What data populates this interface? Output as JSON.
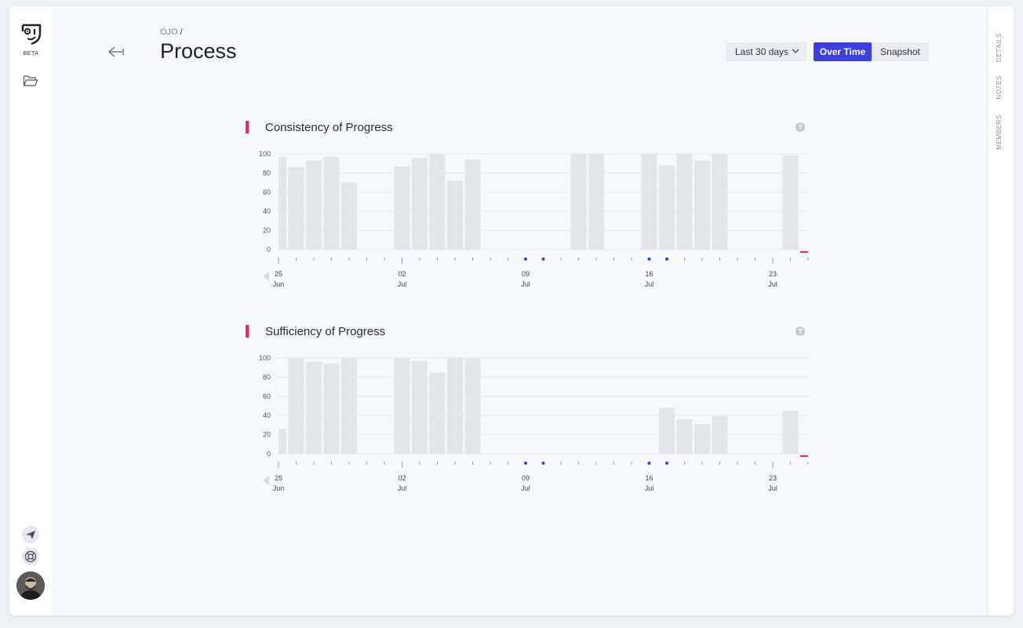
{
  "app": {
    "beta_label": "BETA"
  },
  "icons": {
    "logo": "ojo-logo-icon",
    "folder": "folder-icon",
    "send": "send-icon",
    "help": "lifebuoy-icon",
    "back": "back-arrow-icon",
    "dropdown": "chevron-down-icon",
    "question": "question-icon"
  },
  "header": {
    "breadcrumb": "OJO",
    "breadcrumb_sep": "/",
    "title": "Process",
    "range_label": "Last 30 days",
    "view_over_time": "Over Time",
    "view_snapshot": "Snapshot"
  },
  "right_tabs": [
    "DETAILS",
    "NOTES",
    "MEMBERS"
  ],
  "colors": {
    "accent": "#3a3fde",
    "marker": "#e8275c",
    "bar": "#e4e5e9",
    "dot": "#3a3fde"
  },
  "sections": [
    {
      "title": "Consistency of Progress",
      "help": "?"
    },
    {
      "title": "Sufficiency of Progress",
      "help": "?"
    }
  ],
  "chart_data": [
    {
      "type": "bar",
      "title": "Consistency of Progress",
      "ylim": [
        0,
        100
      ],
      "yticks": [
        0,
        20,
        40,
        60,
        80,
        100
      ],
      "x_labels": [
        {
          "day": "25",
          "month": "Jun",
          "index": 0
        },
        {
          "day": "02",
          "month": "Jul",
          "index": 7
        },
        {
          "day": "09",
          "month": "Jul",
          "index": 14
        },
        {
          "day": "16",
          "month": "Jul",
          "index": 21
        },
        {
          "day": "23",
          "month": "Jul",
          "index": 28
        }
      ],
      "values": [
        97,
        86,
        93,
        97,
        70,
        null,
        null,
        87,
        96,
        100,
        72,
        94,
        null,
        null,
        null,
        null,
        null,
        100,
        100,
        null,
        null,
        100,
        88,
        100,
        93,
        100,
        null,
        null,
        null,
        98,
        null
      ],
      "dots": [
        14,
        15,
        21,
        22
      ],
      "current_marker": 30,
      "grid": true
    },
    {
      "type": "bar",
      "title": "Sufficiency of Progress",
      "ylim": [
        0,
        100
      ],
      "yticks": [
        0,
        20,
        40,
        60,
        80,
        100
      ],
      "x_labels": [
        {
          "day": "25",
          "month": "Jun",
          "index": 0
        },
        {
          "day": "02",
          "month": "Jul",
          "index": 7
        },
        {
          "day": "09",
          "month": "Jul",
          "index": 14
        },
        {
          "day": "16",
          "month": "Jul",
          "index": 21
        },
        {
          "day": "23",
          "month": "Jul",
          "index": 28
        }
      ],
      "values": [
        26,
        100,
        96,
        94,
        100,
        null,
        null,
        100,
        97,
        85,
        100,
        100,
        null,
        null,
        null,
        null,
        null,
        null,
        null,
        null,
        null,
        null,
        48,
        36,
        31,
        39,
        null,
        null,
        null,
        45,
        null
      ],
      "dots": [
        14,
        15,
        21,
        22
      ],
      "current_marker": 30,
      "grid": true
    }
  ]
}
